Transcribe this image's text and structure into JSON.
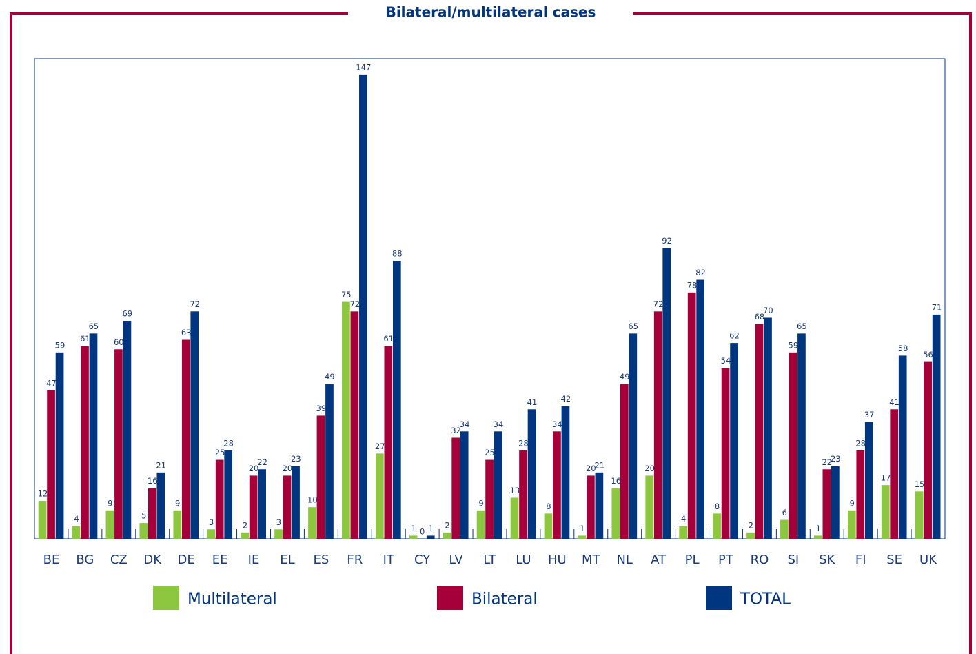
{
  "chart_data": {
    "type": "bar",
    "title": "Bilateral/multilateral cases",
    "categories": [
      "BE",
      "BG",
      "CZ",
      "DK",
      "DE",
      "EE",
      "IE",
      "EL",
      "ES",
      "FR",
      "IT",
      "CY",
      "LV",
      "LT",
      "LU",
      "HU",
      "MT",
      "NL",
      "AT",
      "PL",
      "PT",
      "RO",
      "SI",
      "SK",
      "FI",
      "SE",
      "UK"
    ],
    "series": [
      {
        "name": "Multilateral",
        "color": "#8dc63f",
        "values": [
          12,
          4,
          9,
          5,
          9,
          3,
          2,
          3,
          10,
          75,
          27,
          1,
          2,
          9,
          13,
          8,
          1,
          16,
          20,
          4,
          8,
          2,
          6,
          1,
          9,
          17,
          15
        ]
      },
      {
        "name": "Bilateral",
        "color": "#a6003a",
        "values": [
          47,
          61,
          60,
          16,
          63,
          25,
          20,
          20,
          39,
          72,
          61,
          0,
          32,
          25,
          28,
          34,
          20,
          49,
          72,
          78,
          54,
          68,
          59,
          22,
          28,
          41,
          56
        ]
      },
      {
        "name": "TOTAL",
        "color": "#003580",
        "values": [
          59,
          65,
          69,
          21,
          72,
          28,
          22,
          23,
          49,
          147,
          88,
          1,
          34,
          34,
          41,
          42,
          21,
          65,
          92,
          82,
          62,
          70,
          65,
          23,
          37,
          58,
          71
        ]
      }
    ],
    "ylim": [
      0,
      152
    ]
  }
}
